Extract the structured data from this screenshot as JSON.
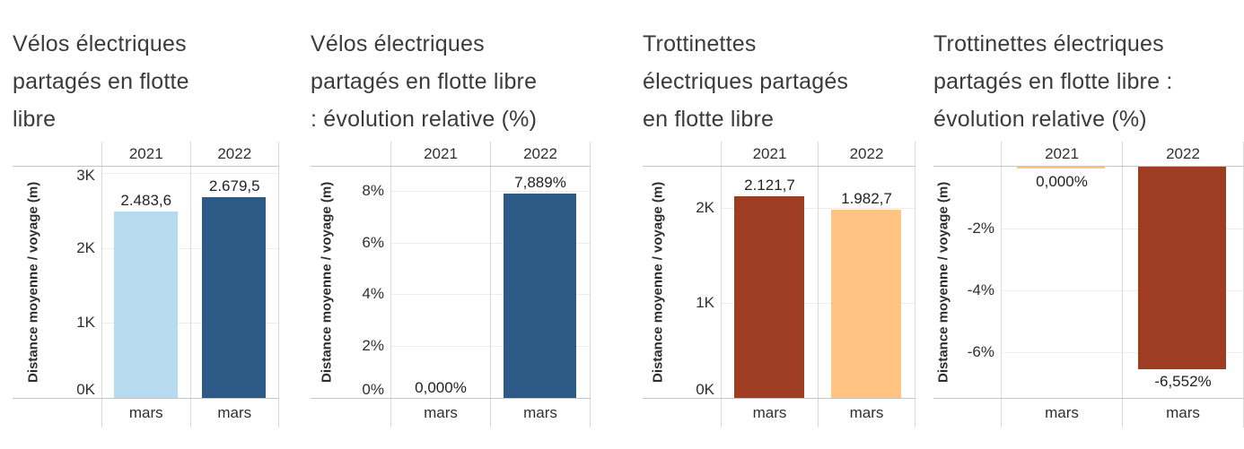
{
  "chart_data": [
    {
      "type": "bar",
      "slug": "velos-flotte-libre",
      "title": "Vélos électriques partagés en flotte libre",
      "title_lines": [
        "Vélos électriques",
        "partagés en flotte",
        "libre"
      ],
      "ylabel": "Distance moyenne / voyage (m)",
      "col_headers": [
        "2021",
        "2022"
      ],
      "x_labels": [
        "mars",
        "mars"
      ],
      "categories": [
        "mars 2021",
        "mars 2022"
      ],
      "values": [
        2483.6,
        2679.5
      ],
      "value_labels": [
        "2.483,6",
        "2.679,5"
      ],
      "bar_colors": [
        "#b7dbee",
        "#2c5985"
      ],
      "ylim": [
        0,
        3083
      ],
      "yticks": [
        {
          "value": 0,
          "label": "0K"
        },
        {
          "value": 1000,
          "label": "1K"
        },
        {
          "value": 2000,
          "label": "2K"
        },
        {
          "value": 3000,
          "label": "3K"
        }
      ],
      "grid": true,
      "legend": "none"
    },
    {
      "type": "bar",
      "slug": "velos-evolution-relative",
      "title": "Vélos électriques partagés en flotte libre : évolution relative (%)",
      "title_lines": [
        "Vélos électriques",
        "partagés en flotte libre",
        ": évolution relative (%)"
      ],
      "ylabel": "Distance moyenne / voyage (m)",
      "col_headers": [
        "2021",
        "2022"
      ],
      "x_labels": [
        "mars",
        "mars"
      ],
      "categories": [
        "mars 2021",
        "mars 2022"
      ],
      "values": [
        0,
        7.889
      ],
      "value_labels": [
        "0,000%",
        "7,889%"
      ],
      "bar_colors": [
        null,
        "#2c5985"
      ],
      "ylim": [
        0,
        8.93
      ],
      "yticks": [
        {
          "value": 0,
          "label": "0%"
        },
        {
          "value": 2,
          "label": "2%"
        },
        {
          "value": 4,
          "label": "4%"
        },
        {
          "value": 6,
          "label": "6%"
        },
        {
          "value": 8,
          "label": "8%"
        }
      ],
      "grid": true,
      "legend": "none"
    },
    {
      "type": "bar",
      "slug": "trottinettes-flotte-libre",
      "title": "Trottinettes électriques partagés en flotte libre",
      "title_lines": [
        "Trottinettes",
        "électriques partagés",
        "en flotte libre"
      ],
      "ylabel": "Distance moyenne / voyage (m)",
      "col_headers": [
        "2021",
        "2022"
      ],
      "x_labels": [
        "mars",
        "mars"
      ],
      "categories": [
        "mars 2021",
        "mars 2022"
      ],
      "values": [
        2121.7,
        1982.7
      ],
      "value_labels": [
        "2.121,7",
        "1.982,7"
      ],
      "bar_colors": [
        "#9e3d22",
        "#ffc382"
      ],
      "ylim": [
        0,
        2430
      ],
      "yticks": [
        {
          "value": 0,
          "label": "0K"
        },
        {
          "value": 1000,
          "label": "1K"
        },
        {
          "value": 2000,
          "label": "2K"
        }
      ],
      "grid": true,
      "legend": "none"
    },
    {
      "type": "bar",
      "slug": "trottinettes-evolution-relative",
      "title": "Trottinettes électriques partagés en flotte libre : évolution relative (%)",
      "title_lines": [
        "Trottinettes électriques",
        "partagés en flotte libre :",
        "évolution relative (%)"
      ],
      "ylabel": "Distance moyenne / voyage (m)",
      "col_headers": [
        "2021",
        "2022"
      ],
      "x_labels": [
        "mars",
        "mars"
      ],
      "categories": [
        "mars 2021",
        "mars 2022"
      ],
      "values": [
        0,
        -6.552
      ],
      "value_labels": [
        "0,000%",
        "-6,552%"
      ],
      "bar_colors": [
        "#ffc382",
        "#9e3d22"
      ],
      "ylim": [
        -7.49,
        0
      ],
      "yticks": [
        {
          "value": -2,
          "label": "-2%"
        },
        {
          "value": -4,
          "label": "-4%"
        },
        {
          "value": -6,
          "label": "-6%"
        }
      ],
      "grid": true,
      "legend": "none"
    }
  ]
}
